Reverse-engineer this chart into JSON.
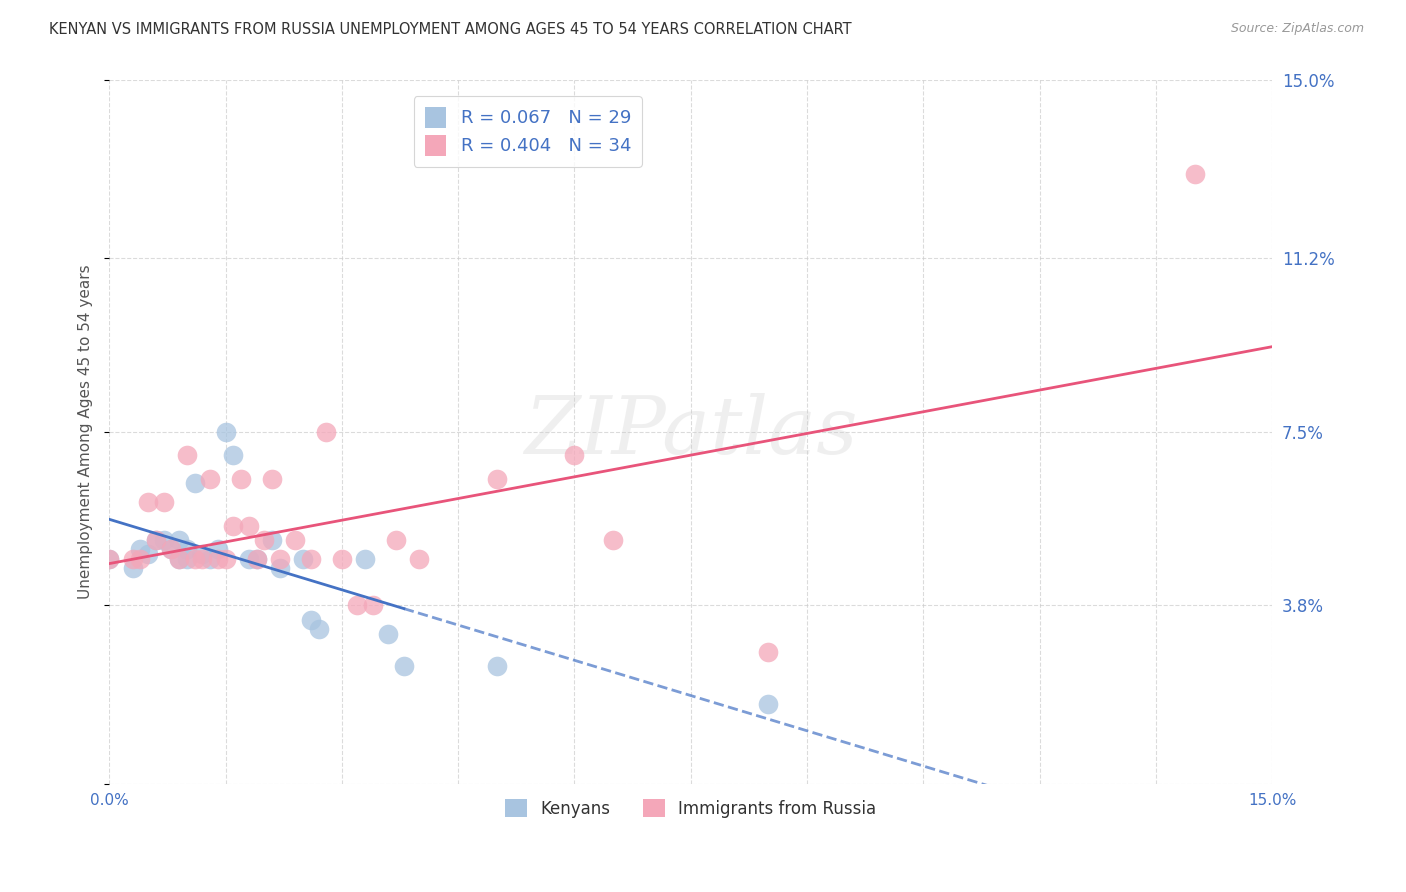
{
  "title": "KENYAN VS IMMIGRANTS FROM RUSSIA UNEMPLOYMENT AMONG AGES 45 TO 54 YEARS CORRELATION CHART",
  "source": "Source: ZipAtlas.com",
  "ylabel": "Unemployment Among Ages 45 to 54 years",
  "xmin": 0.0,
  "xmax": 0.15,
  "ymin": 0.0,
  "ymax": 0.15,
  "kenyan_R": "0.067",
  "kenyan_N": "29",
  "russia_R": "0.404",
  "russia_N": "34",
  "kenyan_color": "#a8c4e0",
  "russia_color": "#f4a7b9",
  "kenyan_line_color": "#4472c4",
  "russia_line_color": "#e8547a",
  "kenyan_scatter_x": [
    0.0,
    0.003,
    0.004,
    0.005,
    0.006,
    0.007,
    0.008,
    0.009,
    0.009,
    0.01,
    0.01,
    0.011,
    0.012,
    0.013,
    0.014,
    0.015,
    0.016,
    0.018,
    0.019,
    0.021,
    0.022,
    0.025,
    0.026,
    0.027,
    0.033,
    0.036,
    0.038,
    0.05,
    0.085
  ],
  "kenyan_scatter_y": [
    0.048,
    0.046,
    0.05,
    0.049,
    0.052,
    0.052,
    0.05,
    0.048,
    0.052,
    0.048,
    0.05,
    0.064,
    0.049,
    0.048,
    0.05,
    0.075,
    0.07,
    0.048,
    0.048,
    0.052,
    0.046,
    0.048,
    0.035,
    0.033,
    0.048,
    0.032,
    0.025,
    0.025,
    0.017
  ],
  "russia_scatter_x": [
    0.0,
    0.003,
    0.004,
    0.005,
    0.006,
    0.007,
    0.008,
    0.009,
    0.01,
    0.011,
    0.012,
    0.013,
    0.014,
    0.015,
    0.016,
    0.017,
    0.018,
    0.019,
    0.02,
    0.021,
    0.022,
    0.024,
    0.026,
    0.028,
    0.03,
    0.032,
    0.034,
    0.037,
    0.04,
    0.05,
    0.06,
    0.065,
    0.085,
    0.14
  ],
  "russia_scatter_y": [
    0.048,
    0.048,
    0.048,
    0.06,
    0.052,
    0.06,
    0.05,
    0.048,
    0.07,
    0.048,
    0.048,
    0.065,
    0.048,
    0.048,
    0.055,
    0.065,
    0.055,
    0.048,
    0.052,
    0.065,
    0.048,
    0.052,
    0.048,
    0.075,
    0.048,
    0.038,
    0.038,
    0.052,
    0.048,
    0.065,
    0.07,
    0.052,
    0.028,
    0.13
  ],
  "kenyan_line_solid_end": 0.038,
  "kenyan_line_dashed_start": 0.038,
  "watermark_text": "ZIPatlas",
  "bg_color": "#ffffff",
  "grid_color": "#cccccc",
  "title_color": "#333333",
  "source_color": "#999999",
  "axis_label_color": "#555555",
  "tick_label_color": "#4472c4"
}
